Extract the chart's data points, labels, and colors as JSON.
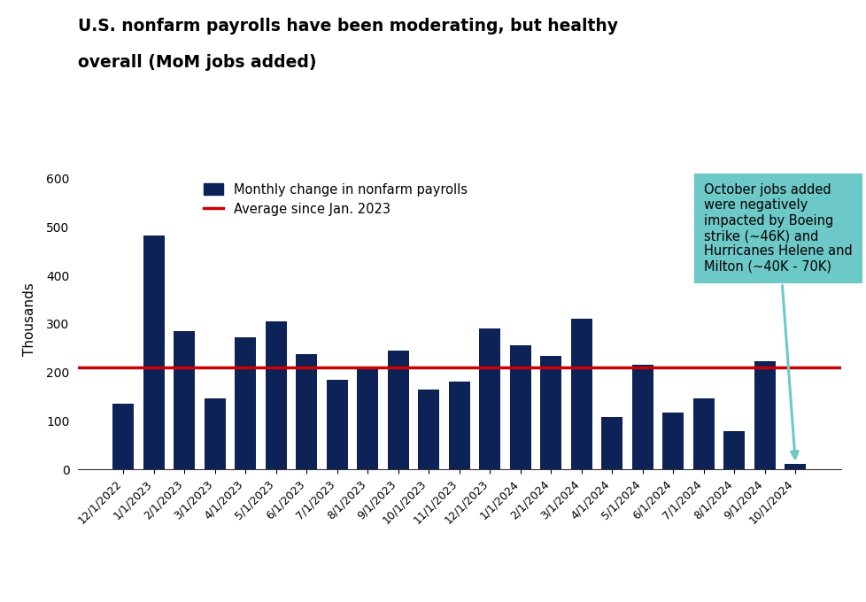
{
  "title_line1": "U.S. nonfarm payrolls have been moderating, but healthy",
  "title_line2": "overall (MoM jobs added)",
  "ylabel": "Thousands",
  "bar_color": "#0d2257",
  "avg_line_color": "#cc0000",
  "avg_value": 211,
  "categories": [
    "12/1/2022",
    "1/1/2023",
    "2/1/2023",
    "3/1/2023",
    "4/1/2023",
    "5/1/2023",
    "6/1/2023",
    "7/1/2023",
    "8/1/2023",
    "9/1/2023",
    "10/1/2023",
    "11/1/2023",
    "12/1/2023",
    "1/1/2024",
    "2/1/2024",
    "3/1/2024",
    "4/1/2024",
    "5/1/2024",
    "6/1/2024",
    "7/1/2024",
    "8/1/2024",
    "9/1/2024",
    "10/1/2024"
  ],
  "values": [
    136,
    482,
    285,
    147,
    272,
    305,
    238,
    185,
    210,
    245,
    165,
    182,
    290,
    256,
    235,
    310,
    108,
    216,
    118,
    147,
    80,
    223,
    12
  ],
  "ylim": [
    0,
    620
  ],
  "yticks": [
    0,
    100,
    200,
    300,
    400,
    500,
    600
  ],
  "annotation_text": "October jobs added\nwere negatively\nimpacted by Boeing\nstrike (~46K) and\nHurricanes Helene and\nMilton (~40K - 70K)",
  "annotation_box_color": "#6dc8c8",
  "annotation_edge_color": "#6dc8c8",
  "legend_bar_label": "Monthly change in nonfarm payrolls",
  "legend_line_label": "Average since Jan. 2023",
  "background_color": "#ffffff"
}
